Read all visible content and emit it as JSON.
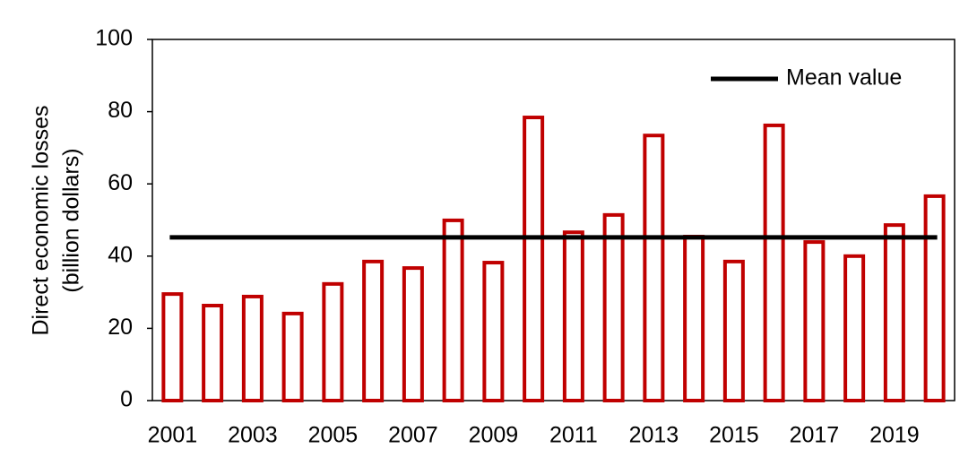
{
  "chart_data": {
    "type": "bar",
    "ylabel": [
      "Direct economic losses",
      "(billion dollars)"
    ],
    "categories": [
      "2001",
      null,
      "2003",
      null,
      "2005",
      null,
      "2007",
      null,
      "2009",
      null,
      "2011",
      null,
      "2013",
      null,
      "2015",
      null,
      "2017",
      null,
      "2019",
      null
    ],
    "values": [
      29.5,
      26.3,
      28.8,
      24.1,
      32.3,
      38.5,
      36.7,
      49.9,
      38.2,
      78.4,
      46.6,
      51.4,
      73.4,
      45.4,
      38.5,
      76.2,
      43.9,
      40.0,
      48.6,
      56.6
    ],
    "color": "#c00000",
    "mean": {
      "name": "Mean value",
      "value": 45.2,
      "color": "#000000"
    },
    "ylim": [
      0,
      100
    ],
    "yticks": [
      0,
      20,
      40,
      60,
      80,
      100
    ],
    "grid": false,
    "legend": "upper right"
  }
}
